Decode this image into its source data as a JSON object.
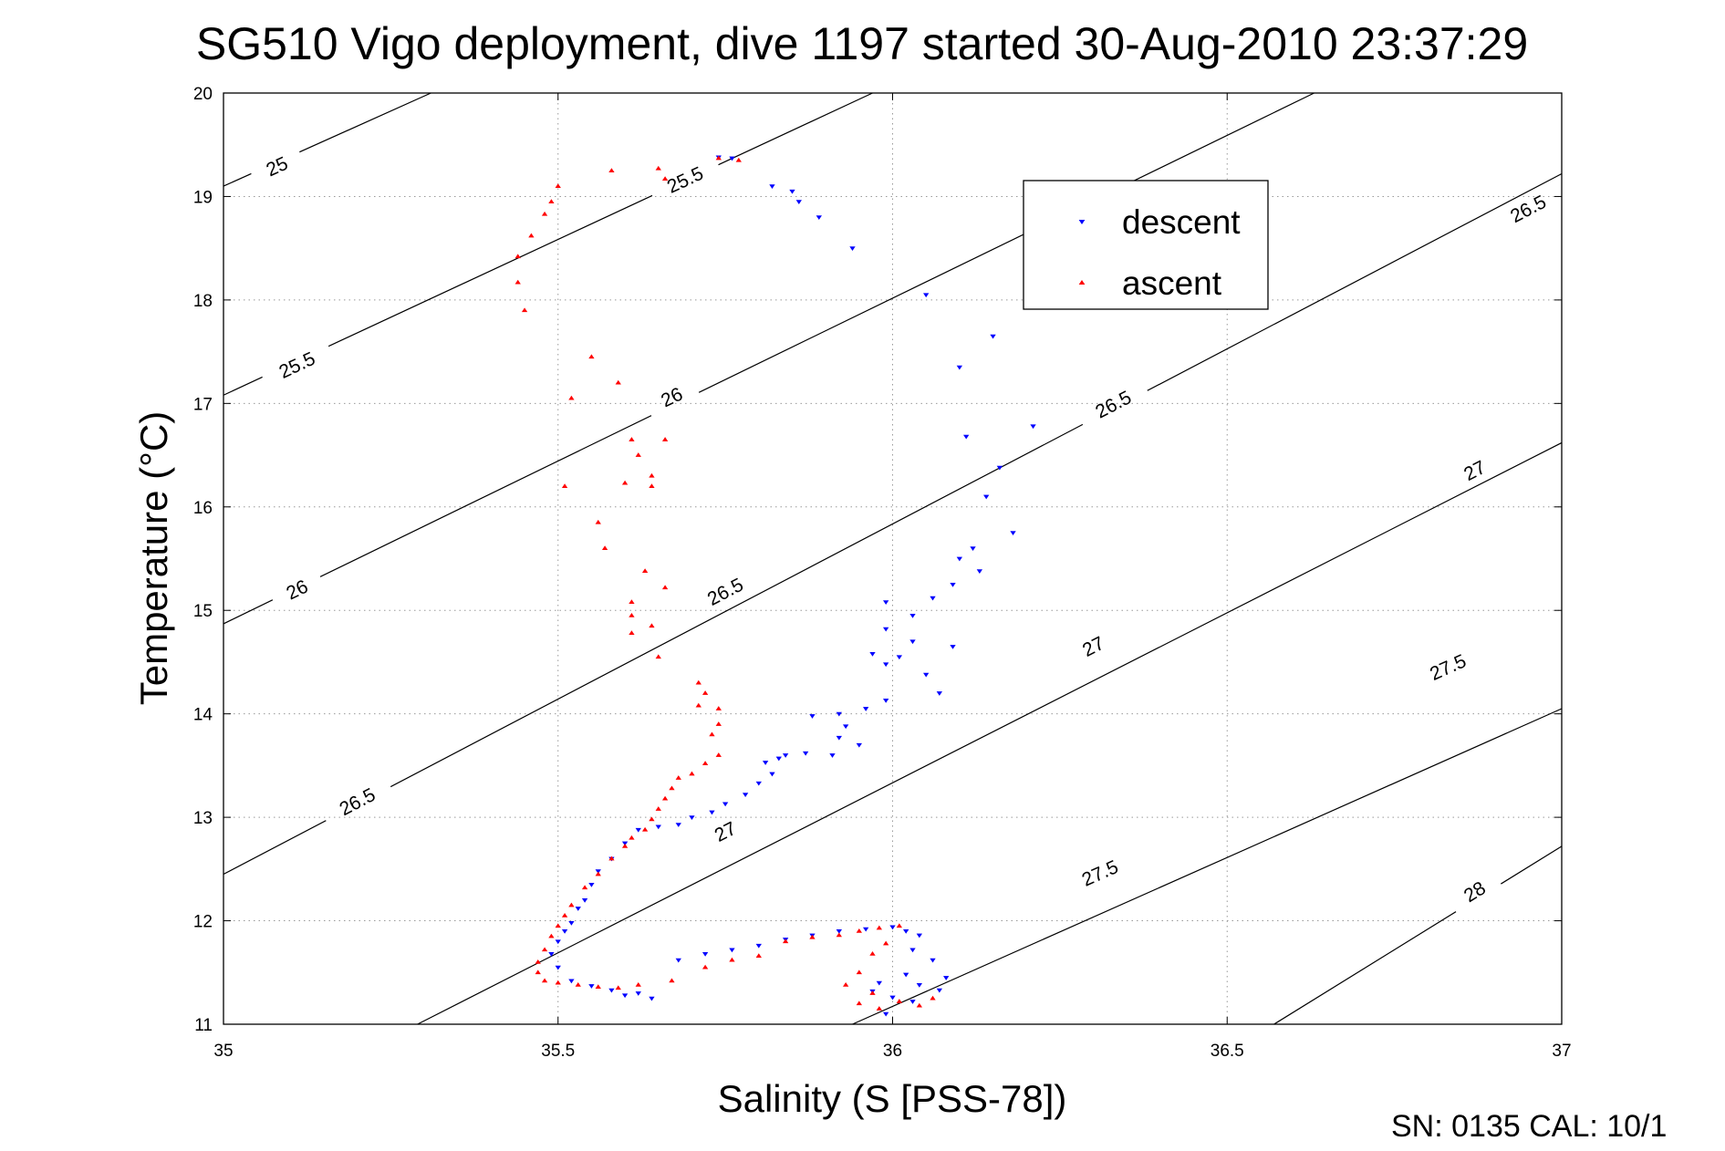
{
  "chart_data": {
    "type": "scatter",
    "title": "SG510 Vigo deployment, dive 1197 started 30-Aug-2010 23:37:29",
    "xlabel": "Salinity (S [PSS-78])",
    "ylabel": "Temperature (°C)",
    "xlim": [
      35,
      37
    ],
    "ylim": [
      11,
      20
    ],
    "xticks": [
      35,
      35.5,
      36,
      36.5,
      37
    ],
    "xtick_labels": [
      "35",
      "35.5",
      "36",
      "36.5",
      "37"
    ],
    "yticks": [
      11,
      12,
      13,
      14,
      15,
      16,
      17,
      18,
      19,
      20
    ],
    "ytick_labels": [
      "11",
      "12",
      "13",
      "14",
      "15",
      "16",
      "17",
      "18",
      "19",
      "20"
    ],
    "grid": true,
    "legend_position": "top-right",
    "footer": "SN: 0135  CAL: 10/1",
    "colors": {
      "descent": "#0000ff",
      "ascent": "#ff0000",
      "contour": "#000000",
      "grid": "#999999"
    },
    "contours": [
      {
        "label": "25",
        "slope": 6.56,
        "points": [
          [
            35,
            19.1
          ],
          [
            35.31,
            20.0
          ]
        ],
        "labels_at": [
          [
            35.08,
            19.29
          ]
        ]
      },
      {
        "label": "25.5",
        "slope": 6.56,
        "points": [
          [
            35,
            17.08
          ],
          [
            35.97,
            20.0
          ]
        ],
        "labels_at": [
          [
            35.69,
            19.16
          ],
          [
            35.11,
            17.37
          ]
        ]
      },
      {
        "label": "26",
        "slope": 6.56,
        "points": [
          [
            35,
            14.87
          ],
          [
            36.63,
            20.0
          ]
        ],
        "labels_at": [
          [
            35.67,
            17.06
          ],
          [
            35.11,
            15.2
          ]
        ]
      },
      {
        "label": "26.5",
        "slope": 6.56,
        "points": [
          [
            35,
            12.45
          ],
          [
            37,
            19.22
          ]
        ],
        "labels_at": [
          [
            36.95,
            18.88
          ],
          [
            36.33,
            16.99
          ],
          [
            35.75,
            15.18
          ],
          [
            35.2,
            13.15
          ]
        ]
      },
      {
        "label": "27",
        "slope": 6.56,
        "points": [
          [
            35.29,
            11.0
          ],
          [
            37,
            16.62
          ]
        ],
        "labels_at": [
          [
            36.87,
            16.35
          ],
          [
            36.3,
            14.65
          ],
          [
            35.75,
            12.86
          ]
        ]
      },
      {
        "label": "27.5",
        "slope": 6.56,
        "points": [
          [
            35.94,
            11.0
          ],
          [
            37,
            14.05
          ]
        ],
        "labels_at": [
          [
            36.83,
            14.45
          ],
          [
            36.31,
            12.46
          ]
        ]
      },
      {
        "label": "28",
        "slope": 6.56,
        "points": [
          [
            36.57,
            11.0
          ],
          [
            37,
            12.72
          ]
        ],
        "labels_at": [
          [
            36.87,
            12.28
          ]
        ]
      }
    ],
    "series": [
      {
        "name": "descent",
        "marker": "triangle-down",
        "points": [
          [
            35.76,
            19.37
          ],
          [
            35.74,
            19.38
          ],
          [
            35.82,
            19.1
          ],
          [
            35.85,
            19.05
          ],
          [
            35.86,
            18.95
          ],
          [
            35.89,
            18.8
          ],
          [
            35.94,
            18.5
          ],
          [
            36.05,
            18.05
          ],
          [
            36.15,
            17.65
          ],
          [
            36.1,
            17.35
          ],
          [
            36.21,
            16.78
          ],
          [
            36.11,
            16.68
          ],
          [
            36.16,
            16.38
          ],
          [
            36.14,
            16.1
          ],
          [
            36.18,
            15.75
          ],
          [
            36.12,
            15.6
          ],
          [
            36.1,
            15.5
          ],
          [
            36.13,
            15.38
          ],
          [
            36.09,
            15.25
          ],
          [
            36.06,
            15.12
          ],
          [
            35.99,
            15.08
          ],
          [
            36.03,
            14.95
          ],
          [
            35.99,
            14.82
          ],
          [
            36.03,
            14.7
          ],
          [
            36.09,
            14.65
          ],
          [
            35.97,
            14.58
          ],
          [
            36.01,
            14.55
          ],
          [
            35.99,
            14.48
          ],
          [
            36.05,
            14.38
          ],
          [
            36.07,
            14.2
          ],
          [
            35.99,
            14.13
          ],
          [
            35.96,
            14.05
          ],
          [
            35.92,
            14.0
          ],
          [
            35.88,
            13.98
          ],
          [
            35.93,
            13.88
          ],
          [
            35.92,
            13.77
          ],
          [
            35.95,
            13.7
          ],
          [
            35.91,
            13.6
          ],
          [
            35.87,
            13.62
          ],
          [
            35.84,
            13.6
          ],
          [
            35.83,
            13.57
          ],
          [
            35.81,
            13.53
          ],
          [
            35.82,
            13.42
          ],
          [
            35.8,
            13.33
          ],
          [
            35.78,
            13.22
          ],
          [
            35.75,
            13.13
          ],
          [
            35.73,
            13.05
          ],
          [
            35.7,
            13.0
          ],
          [
            35.68,
            12.93
          ],
          [
            35.65,
            12.91
          ],
          [
            35.62,
            12.88
          ],
          [
            35.6,
            12.75
          ],
          [
            35.58,
            12.6
          ],
          [
            35.56,
            12.48
          ],
          [
            35.55,
            12.35
          ],
          [
            35.54,
            12.2
          ],
          [
            35.53,
            12.12
          ],
          [
            35.52,
            11.98
          ],
          [
            35.51,
            11.9
          ],
          [
            35.5,
            11.8
          ],
          [
            35.49,
            11.68
          ],
          [
            35.5,
            11.55
          ],
          [
            35.52,
            11.42
          ],
          [
            35.55,
            11.37
          ],
          [
            35.58,
            11.33
          ],
          [
            35.6,
            11.28
          ],
          [
            35.62,
            11.3
          ],
          [
            35.64,
            11.25
          ],
          [
            35.68,
            11.62
          ],
          [
            35.72,
            11.68
          ],
          [
            35.76,
            11.72
          ],
          [
            35.8,
            11.76
          ],
          [
            35.84,
            11.82
          ],
          [
            35.88,
            11.86
          ],
          [
            35.92,
            11.9
          ],
          [
            35.96,
            11.92
          ],
          [
            36.0,
            11.94
          ],
          [
            36.02,
            11.9
          ],
          [
            36.04,
            11.86
          ],
          [
            36.03,
            11.72
          ],
          [
            36.06,
            11.62
          ],
          [
            36.02,
            11.48
          ],
          [
            35.98,
            11.4
          ],
          [
            35.97,
            11.32
          ],
          [
            36.0,
            11.26
          ],
          [
            36.03,
            11.22
          ],
          [
            36.04,
            11.38
          ],
          [
            36.07,
            11.33
          ],
          [
            36.08,
            11.45
          ],
          [
            35.99,
            11.1
          ]
        ]
      },
      {
        "name": "ascent",
        "marker": "triangle-up",
        "points": [
          [
            35.74,
            19.37
          ],
          [
            35.77,
            19.35
          ],
          [
            35.65,
            19.27
          ],
          [
            35.58,
            19.25
          ],
          [
            35.66,
            19.17
          ],
          [
            35.5,
            19.1
          ],
          [
            35.49,
            18.95
          ],
          [
            35.48,
            18.83
          ],
          [
            35.46,
            18.62
          ],
          [
            35.44,
            18.42
          ],
          [
            35.44,
            18.17
          ],
          [
            35.45,
            17.9
          ],
          [
            35.55,
            17.45
          ],
          [
            35.59,
            17.2
          ],
          [
            35.52,
            17.05
          ],
          [
            35.61,
            16.65
          ],
          [
            35.66,
            16.65
          ],
          [
            35.62,
            16.5
          ],
          [
            35.64,
            16.3
          ],
          [
            35.6,
            16.23
          ],
          [
            35.64,
            16.2
          ],
          [
            35.51,
            16.2
          ],
          [
            35.56,
            15.85
          ],
          [
            35.57,
            15.6
          ],
          [
            35.63,
            15.38
          ],
          [
            35.66,
            15.22
          ],
          [
            35.61,
            15.08
          ],
          [
            35.61,
            14.95
          ],
          [
            35.64,
            14.85
          ],
          [
            35.61,
            14.78
          ],
          [
            35.65,
            14.55
          ],
          [
            35.71,
            14.3
          ],
          [
            35.72,
            14.2
          ],
          [
            35.71,
            14.08
          ],
          [
            35.74,
            14.05
          ],
          [
            35.74,
            13.9
          ],
          [
            35.73,
            13.8
          ],
          [
            35.74,
            13.6
          ],
          [
            35.72,
            13.52
          ],
          [
            35.7,
            13.42
          ],
          [
            35.68,
            13.38
          ],
          [
            35.67,
            13.28
          ],
          [
            35.66,
            13.18
          ],
          [
            35.65,
            13.08
          ],
          [
            35.64,
            12.98
          ],
          [
            35.63,
            12.88
          ],
          [
            35.61,
            12.8
          ],
          [
            35.6,
            12.72
          ],
          [
            35.58,
            12.6
          ],
          [
            35.56,
            12.45
          ],
          [
            35.54,
            12.32
          ],
          [
            35.52,
            12.15
          ],
          [
            35.51,
            12.05
          ],
          [
            35.5,
            11.95
          ],
          [
            35.49,
            11.85
          ],
          [
            35.48,
            11.72
          ],
          [
            35.47,
            11.6
          ],
          [
            35.47,
            11.5
          ],
          [
            35.48,
            11.42
          ],
          [
            35.5,
            11.4
          ],
          [
            35.53,
            11.38
          ],
          [
            35.56,
            11.36
          ],
          [
            35.59,
            11.35
          ],
          [
            35.62,
            11.38
          ],
          [
            35.67,
            11.42
          ],
          [
            35.72,
            11.55
          ],
          [
            35.76,
            11.62
          ],
          [
            35.8,
            11.66
          ],
          [
            35.84,
            11.8
          ],
          [
            35.88,
            11.84
          ],
          [
            35.92,
            11.86
          ],
          [
            35.95,
            11.9
          ],
          [
            35.98,
            11.93
          ],
          [
            36.01,
            11.95
          ],
          [
            35.99,
            11.78
          ],
          [
            35.97,
            11.68
          ],
          [
            35.95,
            11.5
          ],
          [
            35.93,
            11.38
          ],
          [
            35.97,
            11.3
          ],
          [
            36.01,
            11.22
          ],
          [
            36.04,
            11.18
          ],
          [
            36.06,
            11.25
          ],
          [
            35.98,
            11.15
          ],
          [
            35.95,
            11.2
          ]
        ]
      }
    ]
  }
}
